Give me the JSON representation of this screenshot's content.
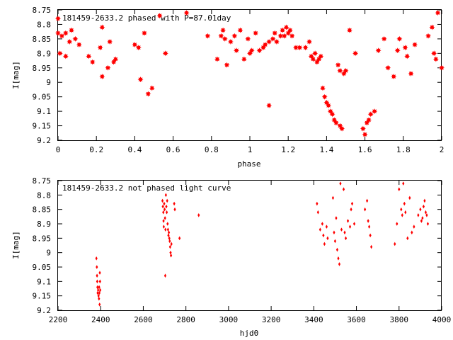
{
  "chart_data": [
    {
      "type": "scatter",
      "title": "181459-2633.2 phased with P=87.01day",
      "xlabel": "phase",
      "ylabel": "I[mag]",
      "xlim": [
        0,
        2
      ],
      "ylim": [
        9.2,
        8.75
      ],
      "y_inverted": true,
      "xticks": [
        "0",
        "0.2",
        "0.4",
        "0.6",
        "0.8",
        "1",
        "1.2",
        "1.4",
        "1.6",
        "1.8",
        "2"
      ],
      "yticks": [
        "8.75",
        "8.8",
        "8.85",
        "8.9",
        "8.95",
        "9",
        "9.05",
        "9.1",
        "9.15",
        "9.2"
      ],
      "marker": "star",
      "color": "#ff0000",
      "grid": false,
      "points": [
        [
          0.0,
          8.78
        ],
        [
          0.0,
          8.83
        ],
        [
          0.01,
          8.9
        ],
        [
          0.02,
          8.84
        ],
        [
          0.04,
          8.83
        ],
        [
          0.04,
          8.91
        ],
        [
          0.06,
          8.86
        ],
        [
          0.07,
          8.82
        ],
        [
          0.09,
          8.85
        ],
        [
          0.11,
          8.87
        ],
        [
          0.16,
          8.91
        ],
        [
          0.18,
          8.93
        ],
        [
          0.22,
          8.88
        ],
        [
          0.23,
          8.98
        ],
        [
          0.23,
          8.81
        ],
        [
          0.26,
          8.95
        ],
        [
          0.27,
          8.86
        ],
        [
          0.29,
          8.93
        ],
        [
          0.3,
          8.92
        ],
        [
          0.4,
          8.87
        ],
        [
          0.42,
          8.88
        ],
        [
          0.43,
          8.99
        ],
        [
          0.45,
          8.83
        ],
        [
          0.47,
          9.04
        ],
        [
          0.49,
          9.02
        ],
        [
          0.53,
          8.77
        ],
        [
          0.56,
          8.9
        ],
        [
          0.67,
          8.76
        ],
        [
          0.78,
          8.84
        ],
        [
          0.83,
          8.92
        ],
        [
          0.85,
          8.84
        ],
        [
          0.86,
          8.82
        ],
        [
          0.87,
          8.85
        ],
        [
          0.88,
          8.94
        ],
        [
          0.9,
          8.86
        ],
        [
          0.92,
          8.84
        ],
        [
          0.93,
          8.89
        ],
        [
          0.95,
          8.82
        ],
        [
          0.97,
          8.92
        ],
        [
          0.99,
          8.85
        ],
        [
          1.0,
          8.9
        ],
        [
          1.01,
          8.89
        ],
        [
          1.03,
          8.83
        ],
        [
          1.05,
          8.89
        ],
        [
          1.07,
          8.88
        ],
        [
          1.08,
          8.87
        ],
        [
          1.1,
          8.86
        ],
        [
          1.1,
          9.08
        ],
        [
          1.12,
          8.85
        ],
        [
          1.13,
          8.83
        ],
        [
          1.14,
          8.86
        ],
        [
          1.16,
          8.84
        ],
        [
          1.17,
          8.82
        ],
        [
          1.18,
          8.84
        ],
        [
          1.19,
          8.81
        ],
        [
          1.2,
          8.83
        ],
        [
          1.21,
          8.82
        ],
        [
          1.22,
          8.84
        ],
        [
          1.24,
          8.88
        ],
        [
          1.26,
          8.88
        ],
        [
          1.29,
          8.88
        ],
        [
          1.31,
          8.86
        ],
        [
          1.32,
          8.91
        ],
        [
          1.33,
          8.92
        ],
        [
          1.34,
          8.9
        ],
        [
          1.35,
          8.93
        ],
        [
          1.36,
          8.92
        ],
        [
          1.37,
          8.91
        ],
        [
          1.38,
          9.02
        ],
        [
          1.39,
          9.05
        ],
        [
          1.4,
          9.07
        ],
        [
          1.41,
          9.08
        ],
        [
          1.42,
          9.1
        ],
        [
          1.43,
          9.11
        ],
        [
          1.44,
          9.13
        ],
        [
          1.45,
          9.14
        ],
        [
          1.46,
          8.94
        ],
        [
          1.47,
          8.96
        ],
        [
          1.47,
          9.15
        ],
        [
          1.48,
          9.16
        ],
        [
          1.49,
          8.97
        ],
        [
          1.5,
          8.96
        ],
        [
          1.52,
          8.82
        ],
        [
          1.55,
          8.9
        ],
        [
          1.59,
          9.16
        ],
        [
          1.6,
          9.18
        ],
        [
          1.61,
          9.14
        ],
        [
          1.62,
          9.13
        ],
        [
          1.63,
          9.11
        ],
        [
          1.65,
          9.1
        ],
        [
          1.67,
          8.89
        ],
        [
          1.7,
          8.85
        ],
        [
          1.72,
          8.95
        ],
        [
          1.75,
          8.98
        ],
        [
          1.77,
          8.89
        ],
        [
          1.78,
          8.85
        ],
        [
          1.81,
          8.88
        ],
        [
          1.82,
          8.91
        ],
        [
          1.84,
          8.97
        ],
        [
          1.86,
          8.87
        ],
        [
          1.93,
          8.84
        ],
        [
          1.95,
          8.81
        ],
        [
          1.96,
          8.9
        ],
        [
          1.97,
          8.92
        ],
        [
          1.98,
          8.76
        ],
        [
          2.0,
          8.95
        ]
      ]
    },
    {
      "type": "scatter",
      "title": "181459-2633.2 not phased light curve",
      "xlabel": "hjd0",
      "ylabel": "I[mag]",
      "xlim": [
        2200,
        4000
      ],
      "ylim": [
        9.2,
        8.75
      ],
      "y_inverted": true,
      "xticks": [
        "2200",
        "2400",
        "2600",
        "2800",
        "3000",
        "3200",
        "3400",
        "3600",
        "3800",
        "4000"
      ],
      "yticks": [
        "8.75",
        "8.8",
        "8.85",
        "8.9",
        "8.95",
        "9",
        "9.05",
        "9.1",
        "9.15",
        "9.2"
      ],
      "marker": "diamond",
      "color": "#ff0000",
      "grid": false,
      "points": [
        [
          2380,
          9.02
        ],
        [
          2382,
          9.05
        ],
        [
          2383,
          9.08
        ],
        [
          2384,
          9.1
        ],
        [
          2385,
          9.12
        ],
        [
          2386,
          9.14
        ],
        [
          2388,
          9.13
        ],
        [
          2390,
          9.15
        ],
        [
          2392,
          9.16
        ],
        [
          2393,
          9.12
        ],
        [
          2394,
          9.14
        ],
        [
          2395,
          9.18
        ],
        [
          2396,
          9.07
        ],
        [
          2397,
          9.1
        ],
        [
          2398,
          9.13
        ],
        [
          2690,
          8.82
        ],
        [
          2692,
          8.84
        ],
        [
          2694,
          8.86
        ],
        [
          2695,
          8.89
        ],
        [
          2696,
          8.91
        ],
        [
          2698,
          8.83
        ],
        [
          2700,
          8.85
        ],
        [
          2702,
          8.88
        ],
        [
          2703,
          9.08
        ],
        [
          2704,
          8.92
        ],
        [
          2706,
          8.8
        ],
        [
          2708,
          8.84
        ],
        [
          2710,
          8.86
        ],
        [
          2712,
          8.82
        ],
        [
          2714,
          8.9
        ],
        [
          2716,
          8.92
        ],
        [
          2718,
          8.94
        ],
        [
          2720,
          8.93
        ],
        [
          2722,
          8.95
        ],
        [
          2724,
          8.96
        ],
        [
          2726,
          8.98
        ],
        [
          2728,
          9.0
        ],
        [
          2730,
          9.01
        ],
        [
          2732,
          8.97
        ],
        [
          2745,
          8.83
        ],
        [
          2748,
          8.85
        ],
        [
          2770,
          8.95
        ],
        [
          2860,
          8.87
        ],
        [
          3415,
          8.83
        ],
        [
          3420,
          8.86
        ],
        [
          3430,
          8.92
        ],
        [
          3440,
          8.9
        ],
        [
          3445,
          8.94
        ],
        [
          3450,
          8.97
        ],
        [
          3460,
          8.91
        ],
        [
          3465,
          8.95
        ],
        [
          3490,
          8.81
        ],
        [
          3495,
          8.93
        ],
        [
          3500,
          8.96
        ],
        [
          3505,
          8.88
        ],
        [
          3510,
          8.99
        ],
        [
          3515,
          9.02
        ],
        [
          3520,
          9.04
        ],
        [
          3525,
          8.76
        ],
        [
          3530,
          8.92
        ],
        [
          3540,
          8.78
        ],
        [
          3545,
          8.93
        ],
        [
          3550,
          8.95
        ],
        [
          3560,
          8.89
        ],
        [
          3570,
          8.91
        ],
        [
          3575,
          8.85
        ],
        [
          3580,
          8.83
        ],
        [
          3590,
          8.9
        ],
        [
          3640,
          8.85
        ],
        [
          3650,
          8.82
        ],
        [
          3655,
          8.89
        ],
        [
          3660,
          8.91
        ],
        [
          3665,
          8.94
        ],
        [
          3670,
          8.98
        ],
        [
          3780,
          8.97
        ],
        [
          3790,
          8.9
        ],
        [
          3800,
          8.78
        ],
        [
          3810,
          8.85
        ],
        [
          3815,
          8.87
        ],
        [
          3820,
          8.76
        ],
        [
          3825,
          8.83
        ],
        [
          3830,
          8.86
        ],
        [
          3840,
          8.95
        ],
        [
          3850,
          8.81
        ],
        [
          3860,
          8.93
        ],
        [
          3870,
          8.91
        ],
        [
          3890,
          8.87
        ],
        [
          3900,
          8.85
        ],
        [
          3905,
          8.89
        ],
        [
          3910,
          8.88
        ],
        [
          3915,
          8.84
        ],
        [
          3920,
          8.82
        ],
        [
          3925,
          8.86
        ],
        [
          3930,
          8.87
        ],
        [
          3935,
          8.9
        ]
      ]
    }
  ]
}
